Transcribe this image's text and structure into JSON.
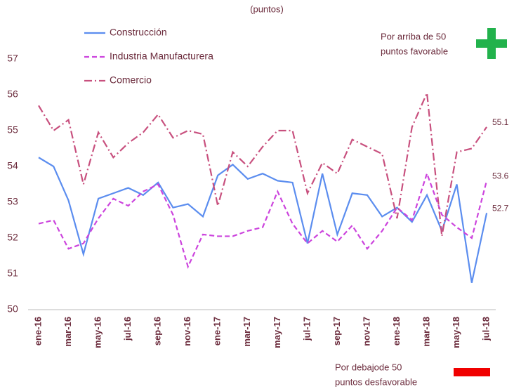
{
  "chart_data": {
    "type": "line",
    "title": "(puntos)",
    "categories": [
      "ene-16",
      null,
      "mar-16",
      null,
      "may-16",
      null,
      "jul-16",
      null,
      "sep-16",
      null,
      "nov-16",
      null,
      "ene-17",
      null,
      "mar-17",
      null,
      "may-17",
      null,
      "jul-17",
      null,
      "sep-17",
      null,
      "nov-17",
      null,
      "ene-18",
      null,
      "mar-18",
      null,
      "may-18",
      null,
      "jul-18"
    ],
    "series": [
      {
        "name": "Construcción",
        "color": "#5b8def",
        "dash": "solid",
        "values": [
          54.25,
          54.0,
          53.05,
          51.55,
          53.1,
          53.25,
          53.4,
          53.2,
          53.55,
          52.85,
          52.95,
          52.6,
          53.75,
          54.05,
          53.65,
          53.8,
          53.6,
          53.55,
          51.85,
          53.8,
          52.1,
          53.25,
          53.2,
          52.6,
          52.85,
          52.45,
          53.2,
          52.2,
          53.5,
          50.75,
          52.7
        ]
      },
      {
        "name": "Industria Manufacturera",
        "color": "#cc44dd",
        "dash": "dashed",
        "values": [
          52.4,
          52.5,
          51.7,
          51.85,
          52.55,
          53.1,
          52.9,
          53.3,
          53.5,
          52.65,
          51.2,
          52.1,
          52.05,
          52.05,
          52.2,
          52.3,
          53.3,
          52.4,
          51.85,
          52.2,
          51.9,
          52.35,
          51.7,
          52.2,
          52.85,
          52.5,
          53.8,
          52.65,
          52.3,
          52.0,
          53.6
        ]
      },
      {
        "name": "Comercio",
        "color": "#c8507e",
        "dash": "dashdot",
        "values": [
          55.7,
          55.0,
          55.3,
          53.5,
          54.95,
          54.25,
          54.65,
          54.95,
          55.45,
          54.8,
          55.0,
          54.9,
          52.9,
          54.4,
          54.0,
          54.55,
          55.0,
          55.0,
          53.25,
          54.1,
          53.8,
          54.75,
          54.55,
          54.35,
          52.55,
          55.1,
          56.05,
          52.05,
          54.4,
          54.5,
          55.1
        ]
      }
    ],
    "ylim": [
      50,
      57
    ],
    "yticks": [
      50,
      51,
      52,
      53,
      54,
      55,
      56,
      57
    ],
    "annotations": {
      "favorable": [
        "Por arriba de 50",
        "puntos favorable"
      ],
      "desfavorable": [
        "Por debajode 50",
        "puntos desfavorable"
      ]
    }
  }
}
